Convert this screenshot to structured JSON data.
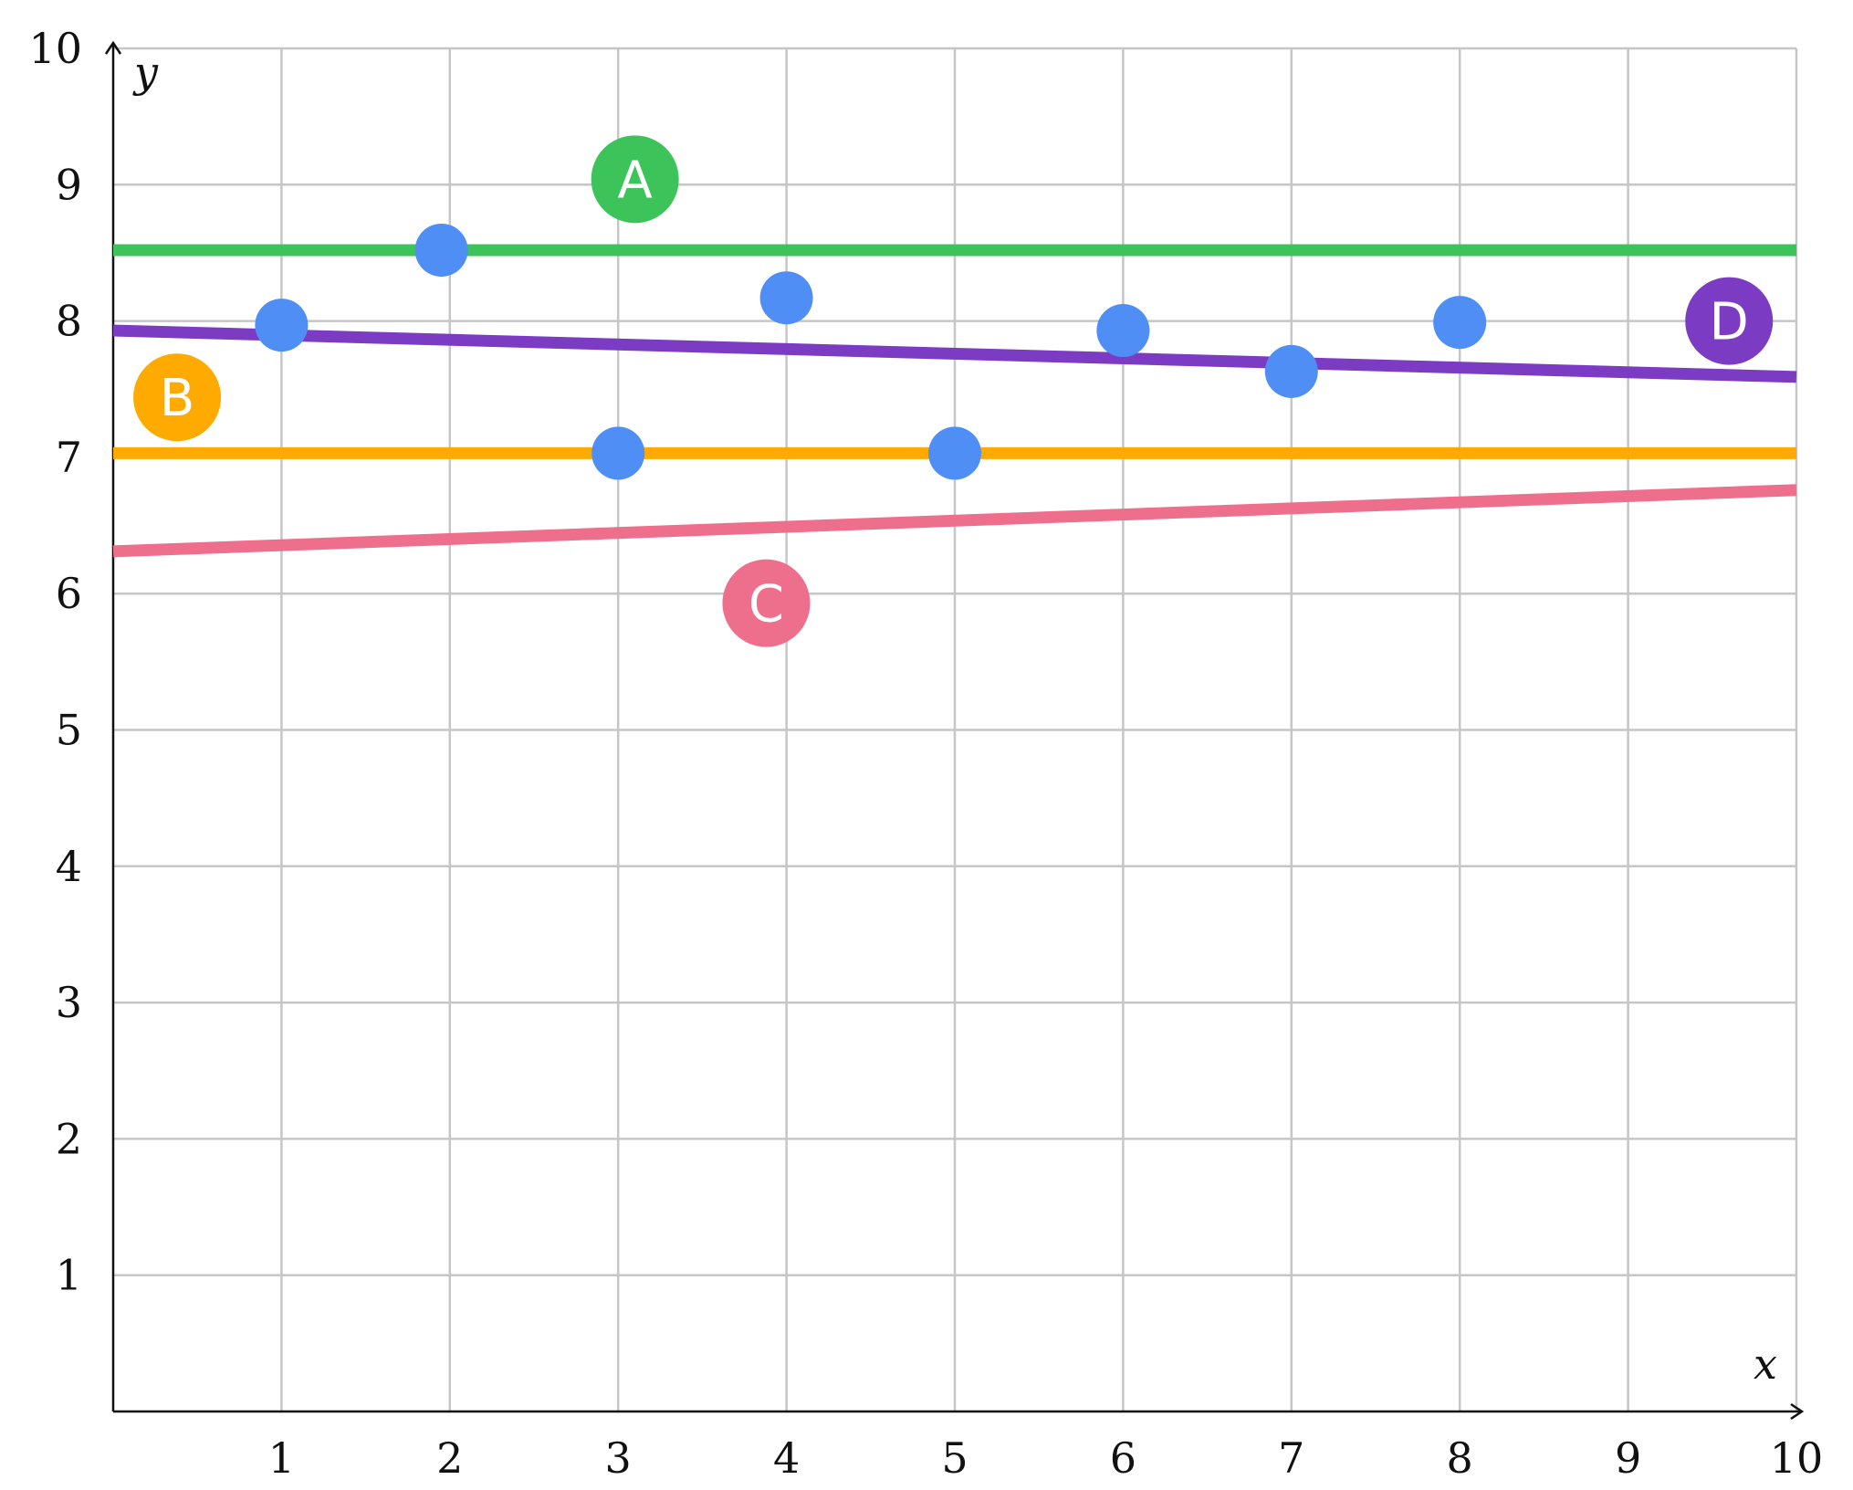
{
  "chart_data": {
    "type": "scatter",
    "title": "",
    "xlabel": "x",
    "ylabel": "y",
    "xlim": [
      0,
      10
    ],
    "ylim": [
      0,
      10
    ],
    "grid": true,
    "x_ticks": [
      "1",
      "2",
      "3",
      "4",
      "5",
      "6",
      "7",
      "8",
      "9",
      "10"
    ],
    "y_ticks": [
      "1",
      "2",
      "3",
      "4",
      "5",
      "6",
      "7",
      "8",
      "9",
      "10"
    ],
    "points": {
      "color": "#4f8ef5",
      "x": [
        1,
        1.95,
        3,
        4,
        5,
        6,
        7,
        8
      ],
      "y": [
        7.97,
        8.52,
        7.03,
        8.17,
        7.03,
        7.93,
        7.63,
        7.99
      ]
    },
    "lines": [
      {
        "name": "A",
        "color": "#3cc35a",
        "x": [
          0,
          10
        ],
        "y": [
          8.52,
          8.52
        ],
        "label_at": [
          3.1,
          9.04
        ]
      },
      {
        "name": "B",
        "color": "#ffaa00",
        "x": [
          0,
          10
        ],
        "y": [
          7.03,
          7.03
        ],
        "label_at": [
          0.38,
          7.44
        ]
      },
      {
        "name": "C",
        "color": "#ee6f8c",
        "x": [
          0,
          10
        ],
        "y": [
          6.31,
          6.76
        ],
        "label_at": [
          3.88,
          5.93
        ]
      },
      {
        "name": "D",
        "color": "#7b3cc3",
        "x": [
          0,
          10
        ],
        "y": [
          7.93,
          7.59
        ],
        "label_at": [
          9.6,
          8.0
        ]
      }
    ]
  }
}
